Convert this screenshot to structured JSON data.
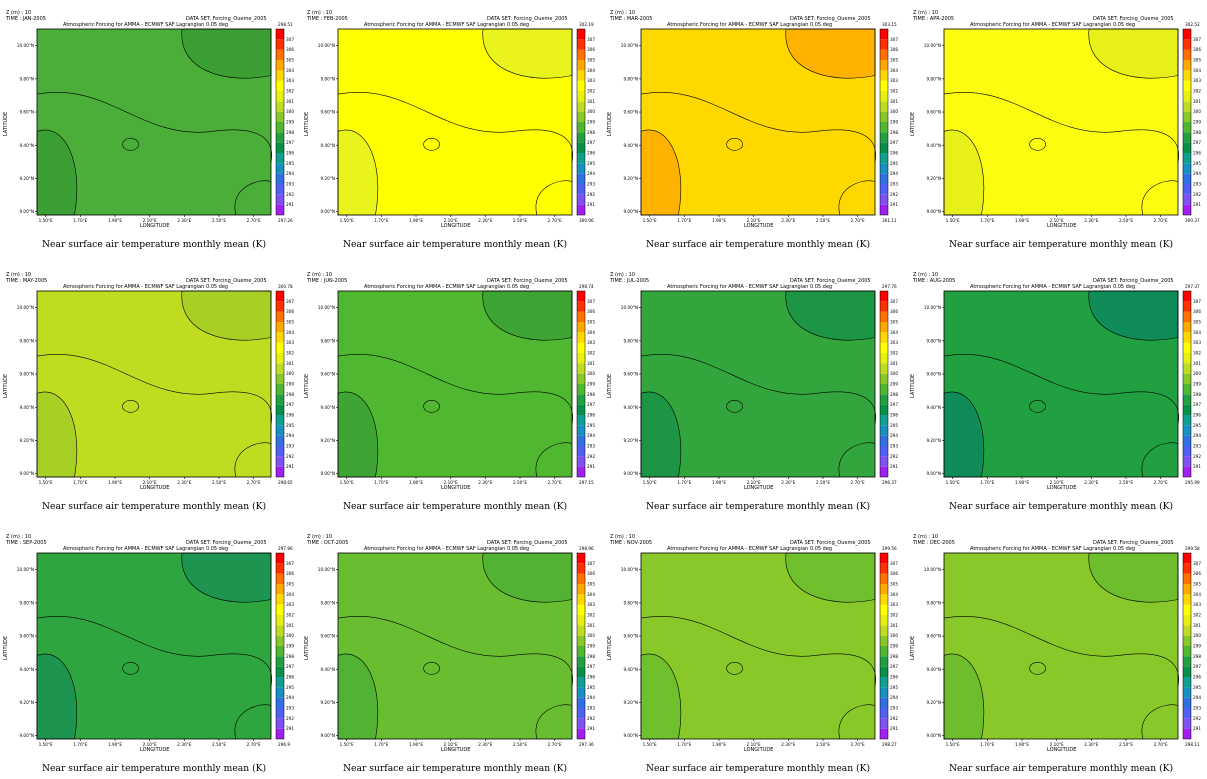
{
  "figure": {
    "header_z": "Z (m) : 10",
    "header_dataset": "DATA SET: Forcing_Oueme_2005",
    "header_subtitle": "Atmospheric Forcing for AMMA - ECMWF SAF Lagrangian 0.05 deg",
    "caption": "Near surface air temperature monthly mean (K)",
    "xlabel": "LONGITUDE",
    "ylabel": "LATITUDE",
    "x_ticks": [
      "1.50°E",
      "1.70°E",
      "1.90°E",
      "2.10°E",
      "2.30°E",
      "2.50°E",
      "2.70°E"
    ],
    "y_ticks": [
      "9.00°N",
      "9.20°N",
      "9.40°N",
      "9.60°N",
      "9.80°N",
      "10.00°N"
    ],
    "colorbar_ticks": [
      "291",
      "292",
      "293",
      "294",
      "295",
      "296",
      "297",
      "298",
      "299",
      "300",
      "301",
      "302",
      "303",
      "304",
      "305",
      "306",
      "307"
    ],
    "colorbar_colors": [
      "#a020f0",
      "#8050f0",
      "#5060f0",
      "#3070e0",
      "#1890c0",
      "#10a090",
      "#089048",
      "#20a040",
      "#50b830",
      "#88c828",
      "#c0dc20",
      "#e8f010",
      "#ffff00",
      "#ffd800",
      "#ffa800",
      "#ff7000",
      "#ff3000",
      "#ff0000"
    ]
  },
  "chart_data": [
    {
      "type": "heatmap",
      "time": "TIME : JAN-2005",
      "max_label": "298.51",
      "min_label": "297.26",
      "fill": "#4aae38",
      "fill_dark": "#3c9f34"
    },
    {
      "type": "heatmap",
      "time": "TIME : FEB-2005",
      "max_label": "302.19",
      "min_label": "300.06",
      "fill": "#ffff00",
      "fill_dark": "#e9f31c"
    },
    {
      "type": "heatmap",
      "time": "TIME : MAR-2005",
      "max_label": "303.15",
      "min_label": "301.11",
      "fill": "#ffd800",
      "fill_dark": "#ffb300"
    },
    {
      "type": "heatmap",
      "time": "TIME : APR-2005",
      "max_label": "302.52",
      "min_label": "300.37",
      "fill": "#fcfc10",
      "fill_dark": "#e8f01a"
    },
    {
      "type": "heatmap",
      "time": "TIME : MAY-2005",
      "max_label": "300.78",
      "min_label": "298.65",
      "fill": "#c0dc20",
      "fill_dark": "#a8d024"
    },
    {
      "type": "heatmap",
      "time": "TIME : JUN-2005",
      "max_label": "298.74",
      "min_label": "297.15",
      "fill": "#50b830",
      "fill_dark": "#3ea534"
    },
    {
      "type": "heatmap",
      "time": "TIME : JUL-2005",
      "max_label": "297.76",
      "min_label": "296.37",
      "fill": "#32a63c",
      "fill_dark": "#1c9544"
    },
    {
      "type": "heatmap",
      "time": "TIME : AUG-2005",
      "max_label": "297.37",
      "min_label": "295.99",
      "fill": "#20a040",
      "fill_dark": "#108c58"
    },
    {
      "type": "heatmap",
      "time": "TIME : SEP-2005",
      "max_label": "297.96",
      "min_label": "296.9",
      "fill": "#2ea53e",
      "fill_dark": "#1d9450"
    },
    {
      "type": "heatmap",
      "time": "TIME : OCT-2005",
      "max_label": "298.96",
      "min_label": "297.36",
      "fill": "#68be30",
      "fill_dark": "#52b234"
    },
    {
      "type": "heatmap",
      "time": "TIME : NOV-2005",
      "max_label": "299.56",
      "min_label": "298.27",
      "fill": "#88c828",
      "fill_dark": "#70bf2c"
    },
    {
      "type": "heatmap",
      "time": "TIME : DEC-2005",
      "max_label": "299.58",
      "min_label": "298.11",
      "fill": "#88c828",
      "fill_dark": "#6ebd2c"
    }
  ]
}
